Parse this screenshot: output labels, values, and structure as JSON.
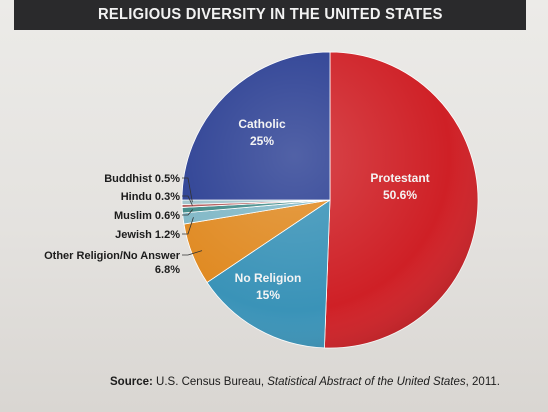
{
  "title": "RELIGIOUS DIVERSITY IN THE UNITED STATES",
  "source": {
    "prefix": "Source:",
    "agency": "U.S. Census Bureau,",
    "publication": "Statistical Abstract of the United States",
    "year": ", 2011."
  },
  "colors": {
    "protestant": "#cf2026",
    "catholic": "#2b3f93",
    "no_religion": "#3a93b8",
    "other": "#e08a22",
    "jewish": "#7fb7c6",
    "muslim": "#3f8a88",
    "hindu": "#b25a5a",
    "buddhist": "#9fc3cc"
  },
  "chart_data": {
    "type": "pie",
    "title": "RELIGIOUS DIVERSITY IN THE UNITED STATES",
    "slices": [
      {
        "label": "Protestant",
        "value_label": "50.6%",
        "value": 50.6,
        "color": "#cf2026",
        "label_position": "inside",
        "label_lines": [
          "Protestant",
          "50.6%"
        ]
      },
      {
        "label": "No Religion",
        "value_label": "15%",
        "value": 15,
        "color": "#3a93b8",
        "label_position": "inside",
        "label_lines": [
          "No Religion",
          "15%"
        ]
      },
      {
        "label": "Other Religion/No Answer",
        "value_label": "6.8%",
        "value": 6.8,
        "color": "#e08a22",
        "label_position": "outside",
        "label_lines": [
          "Other Religion/No Answer",
          "6.8%"
        ]
      },
      {
        "label": "Jewish",
        "value_label": "1.2%",
        "value": 1.2,
        "color": "#7fb7c6",
        "label_position": "outside",
        "label_lines": [
          "Jewish 1.2%"
        ]
      },
      {
        "label": "Muslim",
        "value_label": "0.6%",
        "value": 0.6,
        "color": "#3f8a88",
        "label_position": "outside",
        "label_lines": [
          "Muslim 0.6%"
        ]
      },
      {
        "label": "Hindu",
        "value_label": "0.3%",
        "value": 0.3,
        "color": "#b25a5a",
        "label_position": "outside",
        "label_lines": [
          "Hindu 0.3%"
        ]
      },
      {
        "label": "Buddhist",
        "value_label": "0.5%",
        "value": 0.5,
        "color": "#9fc3cc",
        "label_position": "outside",
        "label_lines": [
          "Buddhist 0.5%"
        ]
      },
      {
        "label": "Catholic",
        "value_label": "25%",
        "value": 25,
        "color": "#2b3f93",
        "label_position": "inside",
        "label_lines": [
          "Catholic",
          "25%"
        ]
      }
    ],
    "start_angle_deg": 0,
    "direction": "clockwise",
    "legend": "none"
  }
}
